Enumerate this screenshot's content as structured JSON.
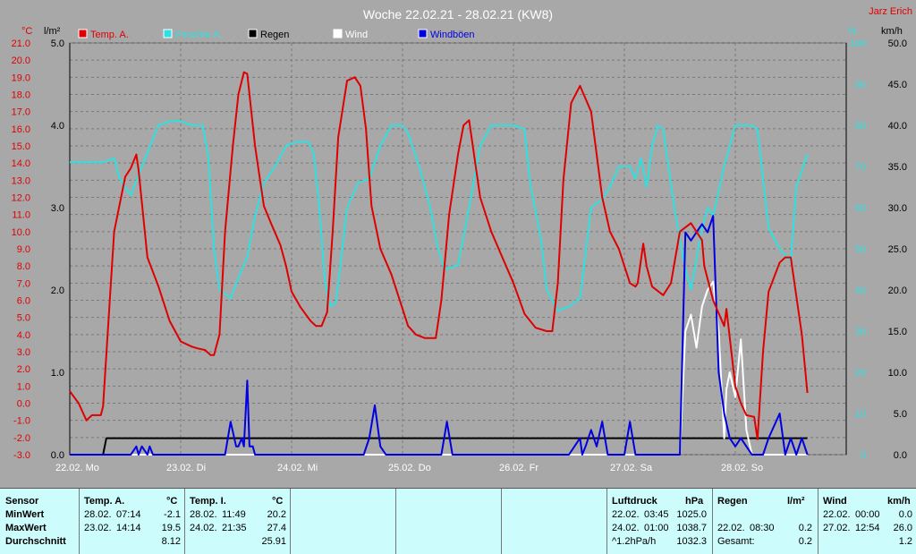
{
  "title": "Woche 22.02.21 - 28.02.21 (KW8)",
  "author": "Jarz Erich",
  "legend": [
    {
      "label": "Temp. A.",
      "color": "#e00000"
    },
    {
      "label": "Feuchte A.",
      "color": "#30e0e0"
    },
    {
      "label": "Regen",
      "color": "#000000"
    },
    {
      "label": "Wind",
      "color": "#ffffff"
    },
    {
      "label": "Windböen",
      "color": "#0000e0"
    }
  ],
  "chart_data": {
    "type": "line",
    "title": "Woche 22.02.21 - 28.02.21 (KW8)",
    "x_categories": [
      "22.02. Mo",
      "23.02. Di",
      "24.02. Mi",
      "25.02. Do",
      "26.02. Fr",
      "27.02. Sa",
      "28.02. So"
    ],
    "axes": {
      "temp": {
        "unit": "°C",
        "min": -3,
        "max": 21,
        "ticks": [
          "21.0",
          "20.0",
          "19.0",
          "18.0",
          "17.0",
          "16.0",
          "15.0",
          "14.0",
          "13.0",
          "12.0",
          "11.0",
          "10.0",
          "9.0",
          "8.0",
          "7.0",
          "6.0",
          "5.0",
          "4.0",
          "3.0",
          "2.0",
          "1.0",
          "0.0",
          "-1.0",
          "-2.0",
          "-3.0"
        ]
      },
      "rain": {
        "unit": "l/m²",
        "min": 0,
        "max": 5,
        "ticks": [
          "5.0",
          "4.0",
          "3.0",
          "2.0",
          "1.0",
          "0.0"
        ]
      },
      "humidity": {
        "unit": "%",
        "min": 0,
        "max": 100,
        "ticks": [
          "100",
          "90",
          "80",
          "70",
          "60",
          "50",
          "40",
          "30",
          "20",
          "10",
          "0"
        ]
      },
      "wind": {
        "unit": "km/h",
        "min": 0,
        "max": 50,
        "ticks": [
          "50.0",
          "45.0",
          "40.0",
          "35.0",
          "30.0",
          "25.0",
          "20.0",
          "15.0",
          "10.0",
          "5.0",
          "0.0"
        ]
      }
    },
    "series": [
      {
        "name": "Temp. A.",
        "axis": "temp",
        "color": "#e00000",
        "x": [
          0,
          0.08,
          0.15,
          0.2,
          0.28,
          0.3,
          0.4,
          0.5,
          0.55,
          0.6,
          0.62,
          0.7,
          0.8,
          0.9,
          1.0,
          1.1,
          1.15,
          1.22,
          1.27,
          1.3,
          1.35,
          1.4,
          1.47,
          1.52,
          1.57,
          1.6,
          1.67,
          1.75,
          1.82,
          1.9,
          1.95,
          2.0,
          2.08,
          2.17,
          2.22,
          2.27,
          2.32,
          2.37,
          2.42,
          2.5,
          2.57,
          2.62,
          2.67,
          2.72,
          2.8,
          2.9,
          3.0,
          3.05,
          3.12,
          3.2,
          3.3,
          3.35,
          3.42,
          3.5,
          3.55,
          3.6,
          3.7,
          3.8,
          3.9,
          4.0,
          4.1,
          4.2,
          4.3,
          4.35,
          4.4,
          4.45,
          4.52,
          4.6,
          4.7,
          4.8,
          4.87,
          4.95,
          5.05,
          5.1,
          5.12,
          5.17,
          5.2,
          5.25,
          5.35,
          5.42,
          5.5,
          5.6,
          5.7,
          5.72,
          5.8,
          5.9,
          5.92,
          6.0,
          6.05,
          6.1,
          6.17,
          6.2,
          6.25,
          6.3,
          6.4,
          6.45,
          6.5,
          6.6,
          6.65
        ],
        "y": [
          0.7,
          0.0,
          -1.0,
          -0.7,
          -0.7,
          -0.2,
          10.0,
          13.2,
          13.7,
          14.5,
          13.6,
          8.5,
          6.8,
          4.8,
          3.6,
          3.3,
          3.2,
          3.1,
          2.8,
          2.8,
          4.0,
          10.0,
          15.0,
          18.0,
          19.3,
          19.2,
          15.0,
          11.5,
          10.4,
          9.2,
          8.0,
          6.5,
          5.6,
          4.8,
          4.5,
          4.5,
          5.3,
          10.0,
          15.5,
          18.8,
          19.0,
          18.5,
          16.0,
          11.5,
          9.0,
          7.5,
          5.5,
          4.5,
          4.0,
          3.8,
          3.8,
          6.0,
          11.0,
          14.5,
          16.2,
          16.5,
          12.0,
          10.0,
          8.5,
          7.0,
          5.2,
          4.4,
          4.2,
          4.2,
          7.0,
          13.0,
          17.5,
          18.5,
          17.0,
          12.0,
          10.0,
          9.0,
          7.0,
          6.8,
          7.0,
          9.3,
          8.0,
          6.8,
          6.3,
          7.0,
          10.0,
          10.5,
          9.5,
          8.0,
          6.0,
          4.5,
          5.5,
          1.0,
          0.0,
          -0.7,
          -0.8,
          -2.1,
          3.0,
          6.5,
          8.2,
          8.5,
          8.5,
          4.0,
          0.6
        ]
      },
      {
        "name": "Feuchte A.",
        "axis": "humidity",
        "color": "#30e0e0",
        "x": [
          0,
          0.2,
          0.3,
          0.4,
          0.45,
          0.55,
          0.65,
          0.8,
          0.9,
          1.0,
          1.1,
          1.2,
          1.25,
          1.3,
          1.35,
          1.45,
          1.55,
          1.6,
          1.67,
          1.75,
          1.85,
          1.95,
          2.05,
          2.15,
          2.2,
          2.25,
          2.3,
          2.35,
          2.4,
          2.5,
          2.6,
          2.7,
          2.8,
          2.9,
          3.0,
          3.05,
          3.15,
          3.25,
          3.32,
          3.38,
          3.5,
          3.6,
          3.7,
          3.8,
          3.9,
          4.0,
          4.1,
          4.15,
          4.25,
          4.3,
          4.4,
          4.5,
          4.6,
          4.7,
          4.8,
          4.87,
          4.95,
          5.05,
          5.1,
          5.15,
          5.2,
          5.25,
          5.3,
          5.35,
          5.45,
          5.55,
          5.6,
          5.7,
          5.75,
          5.8,
          5.9,
          6.0,
          6.1,
          6.15,
          6.2,
          6.3,
          6.4,
          6.5,
          6.55,
          6.65
        ],
        "y": [
          71,
          71,
          71,
          72,
          67,
          63,
          70,
          80,
          81,
          81,
          80,
          80,
          72,
          50,
          40,
          38,
          45,
          48,
          58,
          66,
          70,
          75,
          76,
          76,
          73,
          60,
          42,
          36,
          37,
          60,
          66,
          67,
          75,
          80,
          80,
          78,
          70,
          60,
          50,
          45,
          46,
          60,
          75,
          80,
          80,
          80,
          79,
          66,
          52,
          40,
          35,
          36,
          38,
          60,
          62,
          65,
          70,
          70,
          67,
          72,
          65,
          75,
          80,
          79,
          60,
          45,
          40,
          55,
          60,
          58,
          70,
          80,
          80,
          80,
          79,
          55,
          50,
          47,
          65,
          73
        ]
      },
      {
        "name": "Regen",
        "axis": "rain",
        "color": "#000000",
        "x": [
          0,
          0.3,
          0.33,
          6.65
        ],
        "y": [
          0,
          0,
          0.2,
          0.2
        ]
      },
      {
        "name": "Wind",
        "axis": "wind",
        "color": "#ffffff",
        "x": [
          0,
          5.5,
          5.55,
          5.6,
          5.65,
          5.7,
          5.75,
          5.8,
          5.85,
          5.9,
          5.92,
          5.95,
          6.0,
          6.05,
          6.1,
          6.15,
          6.2,
          6.3,
          6.4,
          6.5,
          6.65
        ],
        "y": [
          0,
          0,
          15,
          17,
          13,
          18,
          20,
          21,
          15,
          2,
          8,
          10,
          7,
          14,
          3,
          0,
          0,
          0,
          0,
          0,
          0
        ]
      },
      {
        "name": "Windböen",
        "axis": "wind",
        "color": "#0000e0",
        "x": [
          0,
          0.55,
          0.6,
          0.62,
          0.65,
          0.7,
          0.72,
          0.75,
          0.78,
          1.4,
          1.45,
          1.5,
          1.52,
          1.55,
          1.57,
          1.6,
          1.62,
          1.65,
          1.67,
          1.7,
          1.72,
          1.75,
          2.65,
          2.7,
          2.75,
          2.8,
          2.85,
          3.35,
          3.4,
          3.45,
          3.5,
          3.55,
          3.6,
          4.5,
          4.55,
          4.6,
          4.62,
          4.65,
          4.7,
          4.75,
          4.8,
          4.85,
          4.9,
          5.0,
          5.05,
          5.1,
          5.15,
          5.2,
          5.25,
          5.5,
          5.55,
          5.6,
          5.65,
          5.7,
          5.75,
          5.8,
          5.85,
          5.9,
          5.95,
          6.0,
          6.05,
          6.1,
          6.15,
          6.2,
          6.25,
          6.3,
          6.4,
          6.45,
          6.5,
          6.55,
          6.6,
          6.65
        ],
        "y": [
          0,
          0,
          1,
          0,
          1,
          0,
          1,
          0,
          0,
          0,
          4,
          1,
          1,
          2,
          1,
          9,
          1,
          1,
          0,
          0,
          0,
          0,
          0,
          2,
          6,
          1,
          0,
          0,
          4,
          0,
          0,
          0,
          0,
          0,
          1,
          2,
          0,
          1,
          3,
          1,
          4,
          0,
          0,
          0,
          4,
          0,
          0,
          0,
          0,
          0,
          27,
          26,
          27,
          28,
          27,
          29,
          10,
          5,
          2,
          1,
          2,
          1,
          0,
          0,
          0,
          2,
          5,
          0,
          2,
          0,
          2,
          0
        ]
      }
    ]
  },
  "table": {
    "headers": {
      "sensor": "Sensor",
      "temp_a": "Temp. A.",
      "temp_a_unit": "°C",
      "temp_i": "Temp. I.",
      "temp_i_unit": "°C",
      "pressure": "Luftdruck",
      "pressure_unit": "hPa",
      "rain": "Regen",
      "rain_unit": "l/m²",
      "wind": "Wind",
      "wind_unit": "km/h"
    },
    "row_labels": [
      "MinWert",
      "MaxWert",
      "Durchschnitt"
    ],
    "temp_a": [
      {
        "date": "28.02.",
        "time": "07:14",
        "val": "-2.1"
      },
      {
        "date": "23.02.",
        "time": "14:14",
        "val": "19.5"
      },
      {
        "date": "",
        "time": "",
        "val": "8.12"
      }
    ],
    "temp_i": [
      {
        "date": "28.02.",
        "time": "11:49",
        "val": "20.2"
      },
      {
        "date": "24.02.",
        "time": "21:35",
        "val": "27.4"
      },
      {
        "date": "",
        "time": "",
        "val": "25.91"
      }
    ],
    "pressure": [
      {
        "date": "22.02.",
        "time": "03:45",
        "val": "1025.0"
      },
      {
        "date": "24.02.",
        "time": "01:00",
        "val": "1038.7"
      },
      {
        "date": "^1.2hPa/h",
        "time": "",
        "val": "1032.3"
      }
    ],
    "rain": [
      {
        "date": "",
        "time": "",
        "val": ""
      },
      {
        "date": "22.02.",
        "time": "08:30",
        "val": "0.2"
      },
      {
        "date": "Gesamt:",
        "time": "",
        "val": "0.2"
      }
    ],
    "wind": [
      {
        "date": "22.02.",
        "time": "00:00",
        "val": "0.0"
      },
      {
        "date": "27.02.",
        "time": "12:54",
        "val": "26.0"
      },
      {
        "date": "",
        "time": "",
        "val": "1.2"
      }
    ]
  }
}
